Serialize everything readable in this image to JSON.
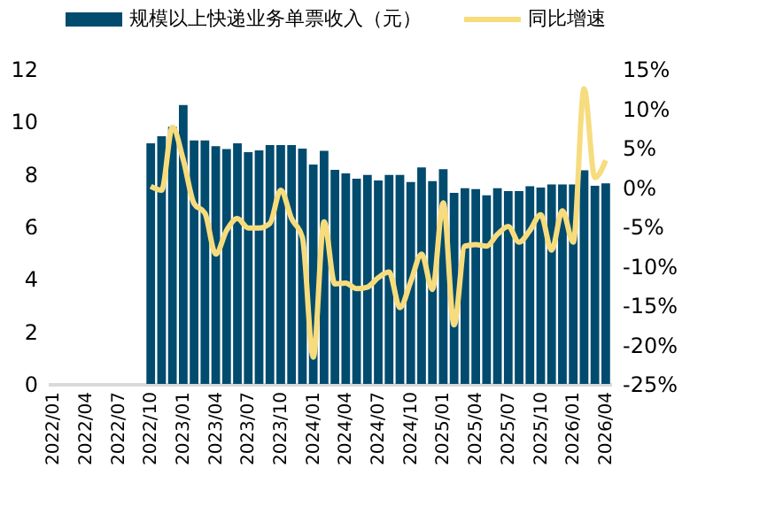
{
  "chart_data": {
    "type": "bar",
    "categories": [
      "2022/01",
      null,
      null,
      "2022/04",
      null,
      null,
      "2022/07",
      null,
      null,
      "2022/10",
      null,
      null,
      "2023/01",
      null,
      null,
      "2023/04",
      null,
      null,
      "2023/07",
      null,
      null,
      "2023/10",
      null,
      null,
      "2024/01",
      null,
      null,
      "2024/04",
      null,
      null,
      "2024/07",
      null,
      null,
      "2024/10",
      null,
      null,
      "2025/01",
      null,
      null,
      "2025/04",
      null,
      null,
      "2025/07",
      null,
      null,
      "2025/10",
      null,
      null,
      "2026/01",
      null,
      null,
      "2026/04"
    ],
    "series": [
      {
        "name": "规模以上快递业务单票收入（元）",
        "color": "#004b6e",
        "values": [
          null,
          null,
          null,
          null,
          null,
          null,
          null,
          null,
          null,
          9.17,
          9.44,
          9.8,
          10.63,
          9.28,
          9.28,
          9.06,
          8.95,
          9.17,
          8.83,
          8.9,
          9.1,
          9.1,
          9.1,
          8.97,
          8.36,
          8.88,
          8.16,
          8.02,
          7.82,
          7.96,
          7.75,
          7.96,
          7.96,
          7.69,
          8.25,
          7.73,
          8.18,
          7.28,
          7.46,
          7.42,
          7.19,
          7.46,
          7.35,
          7.35,
          7.53,
          7.48,
          7.6,
          7.6,
          7.6,
          8.14,
          7.55,
          7.64
        ]
      },
      {
        "name": "同比增速",
        "color": "#f7dc7e",
        "type": "line",
        "axis": "y2",
        "values": [
          null,
          null,
          null,
          null,
          null,
          null,
          null,
          null,
          null,
          0.1,
          -0.4,
          7.6,
          3.5,
          -2.1,
          -3.3,
          -8.5,
          -5.5,
          -4.0,
          -5.2,
          -5.2,
          -4.6,
          -0.4,
          -4.0,
          -6.4,
          -21.6,
          -4.4,
          -12.3,
          -12.2,
          -12.9,
          -12.7,
          -11.5,
          -10.8,
          -15.3,
          -12,
          -8.5,
          -13,
          -2,
          -17.5,
          -7.5,
          -7.3,
          -7.5,
          -6,
          -5,
          -7,
          -5.5,
          -3.5,
          -8,
          -3,
          -7,
          12.5,
          1.2,
          3.4
        ]
      }
    ],
    "ylim": [
      0,
      12
    ],
    "yticks": [
      0,
      2,
      4,
      6,
      8,
      10,
      12
    ],
    "y2lim": [
      -25,
      15
    ],
    "y2ticks": [
      {
        "value": -25,
        "label": "-25%"
      },
      {
        "value": -20,
        "label": "-20%"
      },
      {
        "value": -15,
        "label": "-15%"
      },
      {
        "value": -10,
        "label": "-10%"
      },
      {
        "value": -5,
        "label": "-5%"
      },
      {
        "value": 0,
        "label": "0%"
      },
      {
        "value": 5,
        "label": "5%"
      },
      {
        "value": 10,
        "label": "10%"
      },
      {
        "value": 15,
        "label": "15%"
      }
    ],
    "grid": false,
    "legend": "top",
    "marker": "none",
    "line_style": "solid"
  }
}
